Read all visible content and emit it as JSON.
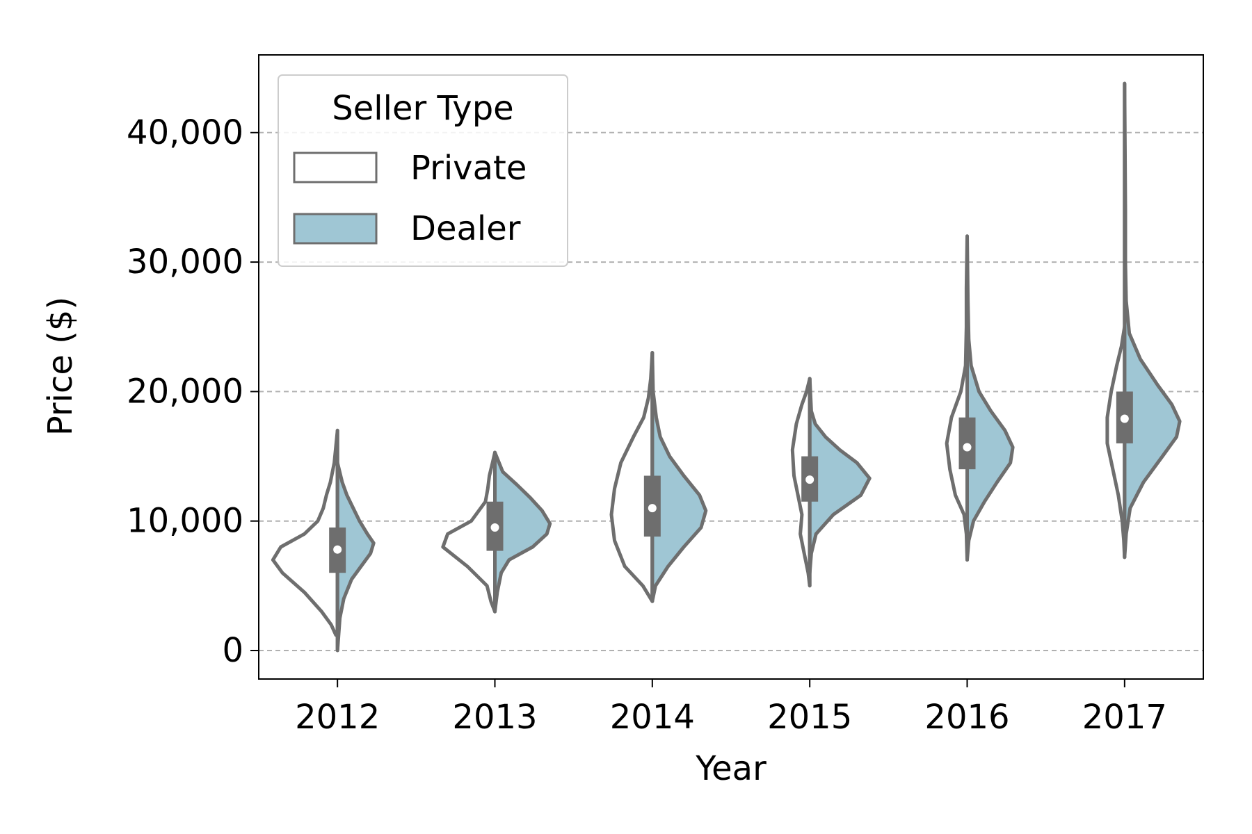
{
  "chart_data": {
    "type": "violin",
    "xlabel": "Year",
    "ylabel": "Price ($)",
    "categories": [
      "2012",
      "2013",
      "2014",
      "2015",
      "2016",
      "2017"
    ],
    "ylim": [
      -2200,
      46000
    ],
    "yticks": [
      0,
      10000,
      20000,
      30000,
      40000
    ],
    "ytick_labels": [
      "0",
      "10,000",
      "20,000",
      "30,000",
      "40,000"
    ],
    "grid": {
      "y": true,
      "style": "dashed",
      "color": "#b0b0b0"
    },
    "legend": {
      "title": "Seller Type",
      "placement": "top-left",
      "entries": [
        {
          "label": "Private",
          "color": "#ffffff"
        },
        {
          "label": "Dealer",
          "color": "#9fc6d4"
        }
      ]
    },
    "colors": {
      "edge": "#6e6e6e",
      "private_fill": "#ffffff",
      "dealer_fill": "#9fc6d4",
      "median_dot": "#ffffff"
    },
    "series": [
      {
        "name": "Private",
        "side": "left",
        "values": [
          {
            "category": "2012",
            "min": 1200,
            "max": 17000,
            "profile": [
              [
                1200,
                0.02
              ],
              [
                2000,
                0.08
              ],
              [
                3000,
                0.2
              ],
              [
                4500,
                0.42
              ],
              [
                6000,
                0.7
              ],
              [
                7000,
                0.82
              ],
              [
                8000,
                0.72
              ],
              [
                9000,
                0.42
              ],
              [
                10000,
                0.25
              ],
              [
                11000,
                0.18
              ],
              [
                12000,
                0.14
              ],
              [
                13000,
                0.09
              ],
              [
                14500,
                0.04
              ],
              [
                17000,
                0.0
              ]
            ]
          },
          {
            "category": "2013",
            "min": 3000,
            "max": 15300,
            "profile": [
              [
                3000,
                0.0
              ],
              [
                3800,
                0.05
              ],
              [
                5000,
                0.1
              ],
              [
                6500,
                0.35
              ],
              [
                8000,
                0.66
              ],
              [
                9000,
                0.6
              ],
              [
                10000,
                0.3
              ],
              [
                11500,
                0.12
              ],
              [
                12500,
                0.09
              ],
              [
                13500,
                0.07
              ],
              [
                14500,
                0.03
              ],
              [
                15300,
                0.0
              ]
            ]
          },
          {
            "category": "2014",
            "min": 3800,
            "max": 23000,
            "profile": [
              [
                3800,
                0.0
              ],
              [
                5000,
                0.12
              ],
              [
                6500,
                0.35
              ],
              [
                8500,
                0.48
              ],
              [
                10500,
                0.52
              ],
              [
                12500,
                0.48
              ],
              [
                14500,
                0.4
              ],
              [
                16500,
                0.24
              ],
              [
                18000,
                0.11
              ],
              [
                19500,
                0.05
              ],
              [
                21000,
                0.02
              ],
              [
                23000,
                0.0
              ]
            ]
          },
          {
            "category": "2015",
            "min": 5000,
            "max": 21000,
            "profile": [
              [
                5000,
                0.0
              ],
              [
                6000,
                0.02
              ],
              [
                7500,
                0.07
              ],
              [
                9000,
                0.12
              ],
              [
                10500,
                0.1
              ],
              [
                12000,
                0.15
              ],
              [
                13500,
                0.2
              ],
              [
                15500,
                0.22
              ],
              [
                17500,
                0.17
              ],
              [
                19000,
                0.1
              ],
              [
                20000,
                0.04
              ],
              [
                21000,
                0.0
              ]
            ]
          },
          {
            "category": "2016",
            "min": 7000,
            "max": 32000,
            "profile": [
              [
                7000,
                0.0
              ],
              [
                9000,
                0.01
              ],
              [
                10500,
                0.04
              ],
              [
                12000,
                0.15
              ],
              [
                14000,
                0.22
              ],
              [
                16000,
                0.26
              ],
              [
                18000,
                0.2
              ],
              [
                20000,
                0.08
              ],
              [
                22000,
                0.02
              ],
              [
                25000,
                0.01
              ],
              [
                28000,
                0.01
              ],
              [
                32000,
                0.0
              ]
            ]
          },
          {
            "category": "2017",
            "min": 7200,
            "max": 25000,
            "profile": [
              [
                7200,
                0.0
              ],
              [
                8500,
                0.01
              ],
              [
                10000,
                0.03
              ],
              [
                12000,
                0.08
              ],
              [
                14000,
                0.15
              ],
              [
                16000,
                0.22
              ],
              [
                18000,
                0.22
              ],
              [
                20000,
                0.17
              ],
              [
                22000,
                0.1
              ],
              [
                23500,
                0.04
              ],
              [
                25000,
                0.0
              ]
            ]
          }
        ]
      },
      {
        "name": "Dealer",
        "side": "right",
        "values": [
          {
            "category": "2012",
            "min": 0,
            "max": 14500,
            "profile": [
              [
                0,
                0.0
              ],
              [
                2500,
                0.03
              ],
              [
                4000,
                0.08
              ],
              [
                5500,
                0.18
              ],
              [
                6500,
                0.3
              ],
              [
                7500,
                0.42
              ],
              [
                8300,
                0.46
              ],
              [
                9000,
                0.38
              ],
              [
                10000,
                0.28
              ],
              [
                11000,
                0.2
              ],
              [
                12000,
                0.12
              ],
              [
                13000,
                0.06
              ],
              [
                14500,
                0.0
              ]
            ]
          },
          {
            "category": "2013",
            "min": 3000,
            "max": 15300,
            "profile": [
              [
                3000,
                0.0
              ],
              [
                4500,
                0.03
              ],
              [
                6000,
                0.08
              ],
              [
                7000,
                0.18
              ],
              [
                8000,
                0.48
              ],
              [
                9000,
                0.66
              ],
              [
                9800,
                0.7
              ],
              [
                10800,
                0.6
              ],
              [
                11800,
                0.45
              ],
              [
                12800,
                0.28
              ],
              [
                13800,
                0.1
              ],
              [
                15300,
                0.0
              ]
            ]
          },
          {
            "category": "2014",
            "min": 3800,
            "max": 23000,
            "profile": [
              [
                3800,
                0.0
              ],
              [
                5000,
                0.04
              ],
              [
                6500,
                0.2
              ],
              [
                8000,
                0.4
              ],
              [
                9500,
                0.62
              ],
              [
                10800,
                0.68
              ],
              [
                12000,
                0.6
              ],
              [
                13500,
                0.4
              ],
              [
                15000,
                0.22
              ],
              [
                16500,
                0.1
              ],
              [
                18000,
                0.05
              ],
              [
                20000,
                0.01
              ],
              [
                23000,
                0.0
              ]
            ]
          },
          {
            "category": "2015",
            "min": 6000,
            "max": 21000,
            "profile": [
              [
                6000,
                0.0
              ],
              [
                7500,
                0.02
              ],
              [
                9000,
                0.08
              ],
              [
                10500,
                0.3
              ],
              [
                12000,
                0.65
              ],
              [
                13300,
                0.76
              ],
              [
                14500,
                0.6
              ],
              [
                15500,
                0.38
              ],
              [
                16500,
                0.2
              ],
              [
                17500,
                0.07
              ],
              [
                18500,
                0.02
              ],
              [
                21000,
                0.0
              ]
            ]
          },
          {
            "category": "2016",
            "min": 7000,
            "max": 32000,
            "profile": [
              [
                7000,
                0.0
              ],
              [
                8500,
                0.02
              ],
              [
                10000,
                0.08
              ],
              [
                11500,
                0.22
              ],
              [
                13000,
                0.38
              ],
              [
                14500,
                0.55
              ],
              [
                15700,
                0.58
              ],
              [
                17000,
                0.48
              ],
              [
                18500,
                0.3
              ],
              [
                20000,
                0.15
              ],
              [
                22000,
                0.05
              ],
              [
                24000,
                0.02
              ],
              [
                27000,
                0.01
              ],
              [
                32000,
                0.0
              ]
            ]
          },
          {
            "category": "2017",
            "min": 7200,
            "max": 43800,
            "profile": [
              [
                7200,
                0.0
              ],
              [
                9000,
                0.02
              ],
              [
                11000,
                0.07
              ],
              [
                13000,
                0.24
              ],
              [
                15000,
                0.48
              ],
              [
                16500,
                0.66
              ],
              [
                17700,
                0.7
              ],
              [
                19000,
                0.6
              ],
              [
                20500,
                0.42
              ],
              [
                22500,
                0.2
              ],
              [
                24500,
                0.06
              ],
              [
                27000,
                0.02
              ],
              [
                30000,
                0.01
              ],
              [
                34000,
                0.01
              ],
              [
                39000,
                0.005
              ],
              [
                43800,
                0.0
              ]
            ]
          }
        ]
      }
    ],
    "box": [
      {
        "category": "2012",
        "q1": 6000,
        "q3": 9500,
        "median": 7800
      },
      {
        "category": "2013",
        "q1": 7700,
        "q3": 11500,
        "median": 9500
      },
      {
        "category": "2014",
        "q1": 8800,
        "q3": 13500,
        "median": 11000
      },
      {
        "category": "2015",
        "q1": 11500,
        "q3": 15000,
        "median": 13200
      },
      {
        "category": "2016",
        "q1": 14000,
        "q3": 18000,
        "median": 15700
      },
      {
        "category": "2017",
        "q1": 16000,
        "q3": 20000,
        "median": 17900
      }
    ]
  }
}
